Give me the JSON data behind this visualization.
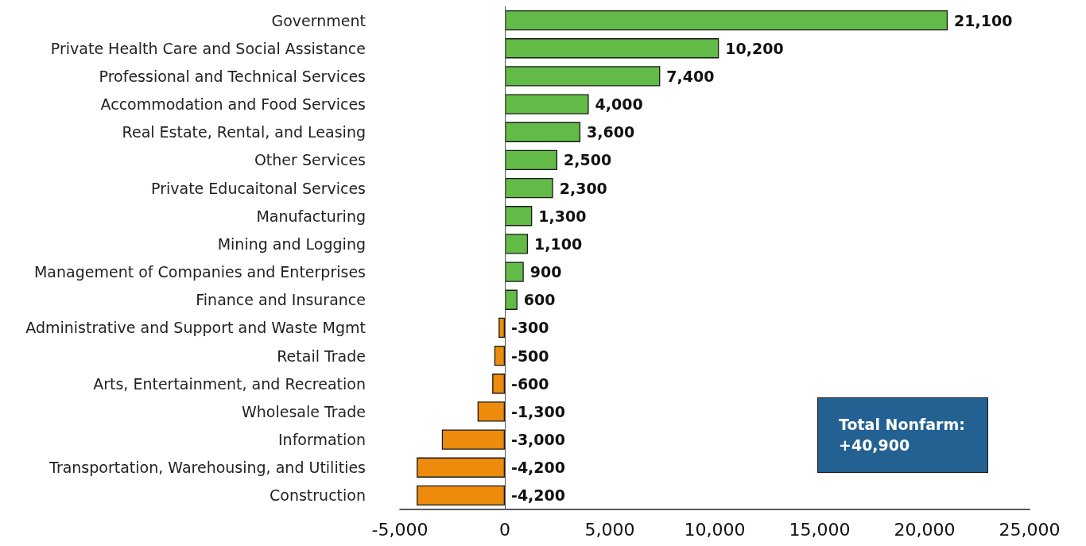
{
  "chart_data": {
    "type": "bar",
    "orientation": "horizontal",
    "categories": [
      "Government",
      "Private Health Care and Social Assistance",
      "Professional and Technical Services",
      "Accommodation and Food Services",
      "Real Estate, Rental, and Leasing",
      "Other Services",
      "Private Educaitonal Services",
      "Manufacturing",
      "Mining and Logging",
      "Management of Companies and Enterprises",
      "Finance and Insurance",
      "Administrative and Support and Waste Mgmt",
      "Retail Trade",
      "Arts, Entertainment, and Recreation",
      "Wholesale Trade",
      "Information",
      "Transportation, Warehousing, and Utilities",
      "Construction"
    ],
    "values": [
      21100,
      10200,
      7400,
      4000,
      3600,
      2500,
      2300,
      1300,
      1100,
      900,
      600,
      -300,
      -500,
      -600,
      -1300,
      -3000,
      -4200,
      -4200
    ],
    "colors": [
      "#62bb46",
      "#62bb46",
      "#62bb46",
      "#62bb46",
      "#62bb46",
      "#62bb46",
      "#62bb46",
      "#62bb46",
      "#62bb46",
      "#62bb46",
      "#62bb46",
      "#ed8b0c",
      "#ed8b0c",
      "#ed8b0c",
      "#ed8b0c",
      "#ed8b0c",
      "#ed8b0c",
      "#ed8b0c"
    ],
    "value_labels": [
      "21,100",
      "10,200",
      "7,400",
      "4,000",
      "3,600",
      "2,500",
      "2,300",
      "1,300",
      "1,100",
      "900",
      "600",
      "-300",
      "-500",
      "-600",
      "-1,300",
      "-3,000",
      "-4,200",
      "-4,200"
    ],
    "xlim": [
      -5000,
      25000
    ],
    "xticks": [
      {
        "value": -5000,
        "label": "-5,000"
      },
      {
        "value": 0,
        "label": "0"
      },
      {
        "value": 5000,
        "label": "5,000"
      },
      {
        "value": 10000,
        "label": "10,000"
      },
      {
        "value": 15000,
        "label": "15,000"
      },
      {
        "value": 20000,
        "label": "20,000"
      },
      {
        "value": 25000,
        "label": "25,000"
      }
    ],
    "grid": false,
    "ref_lines": [
      {
        "axis": "x",
        "value": 0,
        "color": "#555555"
      }
    ],
    "annotations": [
      "Total Nonfarm:\n+40,900"
    ]
  }
}
